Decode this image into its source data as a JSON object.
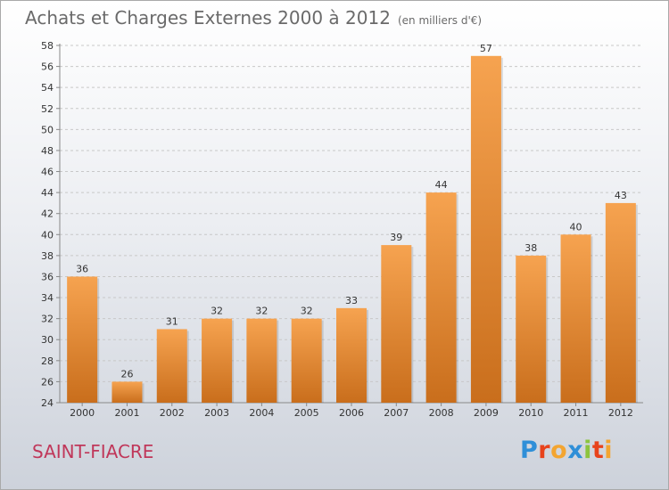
{
  "title": "Achats et Charges Externes 2000 à 2012",
  "unit_label": "(en milliers d'€)",
  "place": "SAINT-FIACRE",
  "logo": {
    "text": "Proxiti",
    "letters": [
      {
        "ch": "P",
        "color": "#2f8fd8"
      },
      {
        "ch": "r",
        "color": "#e8431c"
      },
      {
        "ch": "o",
        "color": "#f3a531"
      },
      {
        "ch": "x",
        "color": "#2f8fd8"
      },
      {
        "ch": "i",
        "color": "#8cc43e"
      },
      {
        "ch": "t",
        "color": "#e8431c"
      },
      {
        "ch": "i",
        "color": "#f3a531"
      }
    ]
  },
  "colors": {
    "bar_light": "#f6a350",
    "bar_dark": "#c96e1c",
    "title": "#6a6a6a",
    "place": "#c0375a"
  },
  "chart_data": {
    "type": "bar",
    "title": "Achats et Charges Externes 2000 à 2012",
    "subtitle": "(en milliers d'€)",
    "categories": [
      "2000",
      "2001",
      "2002",
      "2003",
      "2004",
      "2005",
      "2006",
      "2007",
      "2008",
      "2009",
      "2010",
      "2011",
      "2012"
    ],
    "values": [
      36,
      26,
      31,
      32,
      32,
      32,
      33,
      39,
      44,
      57,
      38,
      40,
      43
    ],
    "ylim": [
      24,
      58
    ],
    "yticks": [
      24,
      26,
      28,
      30,
      32,
      34,
      36,
      38,
      40,
      42,
      44,
      46,
      48,
      50,
      52,
      54,
      56,
      58
    ],
    "grid": "horizontal dashed",
    "data_labels": true
  }
}
